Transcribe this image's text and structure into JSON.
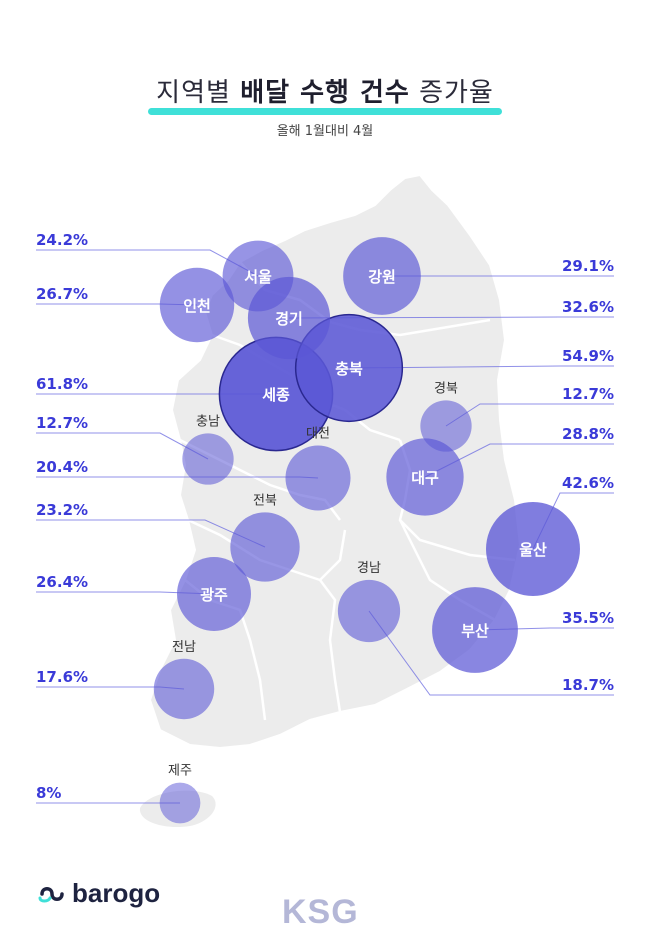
{
  "header": {
    "title_regular_1": "지역별 ",
    "title_bold": "배달 수행 건수",
    "title_regular_2": " 증가율",
    "subtitle": "올해 1월대비 4월"
  },
  "brand": {
    "logo_text": "barogo",
    "watermark": "KSG"
  },
  "colors": {
    "accent": "#3fe0d8",
    "bubble": "#5b57d6",
    "line": "#6b6be0",
    "value": "#3a3ad8",
    "map": "#ececec"
  },
  "chart_data": {
    "type": "bubble-map",
    "title": "지역별 배달 수행 건수 증가율",
    "subtitle": "올해 1월대비 4월",
    "unit": "%",
    "regions": [
      {
        "name": "서울",
        "value": 24.2,
        "value_label": "24.2%",
        "side": "left"
      },
      {
        "name": "인천",
        "value": 26.7,
        "value_label": "26.7%",
        "side": "left"
      },
      {
        "name": "세종",
        "value": 61.8,
        "value_label": "61.8%",
        "side": "left"
      },
      {
        "name": "충남",
        "value": 12.7,
        "value_label": "12.7%",
        "side": "left"
      },
      {
        "name": "대전",
        "value": 20.4,
        "value_label": "20.4%",
        "side": "left"
      },
      {
        "name": "전북",
        "value": 23.2,
        "value_label": "23.2%",
        "side": "left"
      },
      {
        "name": "광주",
        "value": 26.4,
        "value_label": "26.4%",
        "side": "left"
      },
      {
        "name": "전남",
        "value": 17.6,
        "value_label": "17.6%",
        "side": "left"
      },
      {
        "name": "제주",
        "value": 8,
        "value_label": "8%",
        "side": "left"
      },
      {
        "name": "강원",
        "value": 29.1,
        "value_label": "29.1%",
        "side": "right"
      },
      {
        "name": "경기",
        "value": 32.6,
        "value_label": "32.6%",
        "side": "right"
      },
      {
        "name": "충북",
        "value": 54.9,
        "value_label": "54.9%",
        "side": "right"
      },
      {
        "name": "경북",
        "value": 12.7,
        "value_label": "12.7%",
        "side": "right"
      },
      {
        "name": "대구",
        "value": 28.8,
        "value_label": "28.8%",
        "side": "right"
      },
      {
        "name": "울산",
        "value": 42.6,
        "value_label": "42.6%",
        "side": "right"
      },
      {
        "name": "부산",
        "value": 35.5,
        "value_label": "35.5%",
        "side": "right"
      },
      {
        "name": "경남",
        "value": 18.7,
        "value_label": "18.7%",
        "side": "right"
      }
    ]
  }
}
